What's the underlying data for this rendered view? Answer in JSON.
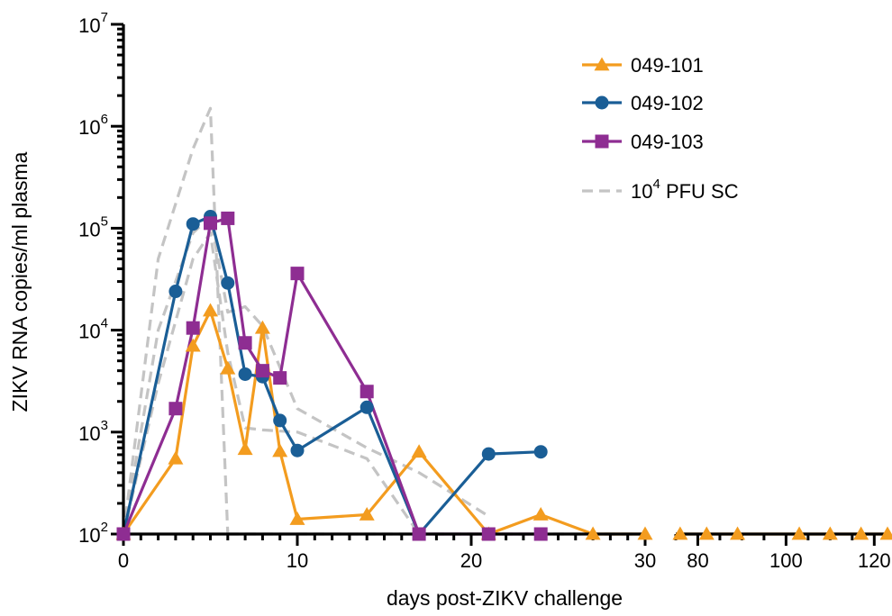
{
  "chart_data": {
    "type": "line",
    "ylabel": "ZIKV RNA copies/ml plasma",
    "xlabel": "days post-ZIKV challenge",
    "yscale": "log",
    "ylim": [
      100,
      10000000
    ],
    "y_ticks": [
      {
        "value": 100,
        "base": "10",
        "exp": "2"
      },
      {
        "value": 1000,
        "base": "10",
        "exp": "3"
      },
      {
        "value": 10000,
        "base": "10",
        "exp": "4"
      },
      {
        "value": 100000,
        "base": "10",
        "exp": "5"
      },
      {
        "value": 1000000,
        "base": "10",
        "exp": "6"
      },
      {
        "value": 10000000,
        "base": "10",
        "exp": "7"
      }
    ],
    "x_segments": [
      {
        "range": [
          0,
          30
        ],
        "ticks": [
          0,
          10,
          20,
          30
        ],
        "tick_labels": [
          "0",
          "10",
          "20",
          "30"
        ],
        "minor_step": 1
      },
      {
        "range": [
          75,
          123
        ],
        "ticks": [
          80,
          100,
          120
        ],
        "tick_labels": [
          "80",
          "100",
          "120"
        ],
        "minor_step": 5
      }
    ],
    "legend_position": "top-right",
    "series": [
      {
        "name": "049-101",
        "color": "#F39C1F",
        "marker": "triangle",
        "points": [
          [
            0,
            100
          ],
          [
            3,
            550
          ],
          [
            4,
            7000
          ],
          [
            5,
            15500
          ],
          [
            6,
            4200
          ],
          [
            7,
            680
          ],
          [
            8,
            10500
          ],
          [
            9,
            650
          ],
          [
            10,
            140
          ],
          [
            14,
            155
          ],
          [
            17,
            640
          ],
          [
            21,
            100
          ],
          [
            24,
            155
          ],
          [
            27,
            100
          ],
          [
            30,
            100
          ],
          [
            76,
            100
          ],
          [
            82,
            100
          ],
          [
            89,
            100
          ],
          [
            103,
            100
          ],
          [
            110,
            100
          ],
          [
            117,
            100
          ],
          [
            123,
            100
          ]
        ]
      },
      {
        "name": "049-102",
        "color": "#1A5E96",
        "marker": "circle",
        "points": [
          [
            0,
            100
          ],
          [
            3,
            24000
          ],
          [
            4,
            110000
          ],
          [
            5,
            130000
          ],
          [
            6,
            29000
          ],
          [
            7,
            3700
          ],
          [
            8,
            3500
          ],
          [
            9,
            1300
          ],
          [
            10,
            660
          ],
          [
            14,
            1750
          ],
          [
            17,
            100
          ],
          [
            21,
            610
          ],
          [
            24,
            640
          ]
        ]
      },
      {
        "name": "049-103",
        "color": "#8E2D92",
        "marker": "square",
        "points": [
          [
            0,
            100
          ],
          [
            3,
            1700
          ],
          [
            4,
            10500
          ],
          [
            5,
            112000
          ],
          [
            6,
            125000
          ],
          [
            7,
            7500
          ],
          [
            8,
            4000
          ],
          [
            9,
            3400
          ],
          [
            10,
            36000
          ],
          [
            14,
            2500
          ],
          [
            17,
            100
          ],
          [
            21,
            100
          ],
          [
            24,
            100
          ]
        ]
      },
      {
        "name_base": "10",
        "name_exp": "4",
        "name_suffix": " PFU SC",
        "color": "#C4C4C4",
        "dashed": true,
        "reference_lines": [
          {
            "points": [
              [
                0,
                100
              ],
              [
                2,
                50000
              ],
              [
                4,
                600000
              ],
              [
                5,
                1500000
              ],
              [
                6,
                100
              ]
            ]
          },
          {
            "points": [
              [
                0,
                100
              ],
              [
                2,
                10000
              ],
              [
                4,
                90000
              ],
              [
                5,
                130000
              ],
              [
                6,
                15000
              ],
              [
                7,
                17000
              ],
              [
                8,
                11000
              ],
              [
                10,
                1700
              ],
              [
                14,
                700
              ],
              [
                17,
                400
              ],
              [
                21,
                150
              ]
            ]
          },
          {
            "points": [
              [
                0,
                100
              ],
              [
                2,
                3000
              ],
              [
                4,
                50000
              ],
              [
                5,
                90000
              ],
              [
                6,
                6000
              ],
              [
                7,
                1100
              ],
              [
                8,
                1050
              ],
              [
                10,
                1000
              ],
              [
                14,
                550
              ],
              [
                17,
                100
              ]
            ]
          },
          {
            "points": [
              [
                6,
                100
              ],
              [
                30,
                100
              ]
            ]
          }
        ]
      }
    ]
  }
}
